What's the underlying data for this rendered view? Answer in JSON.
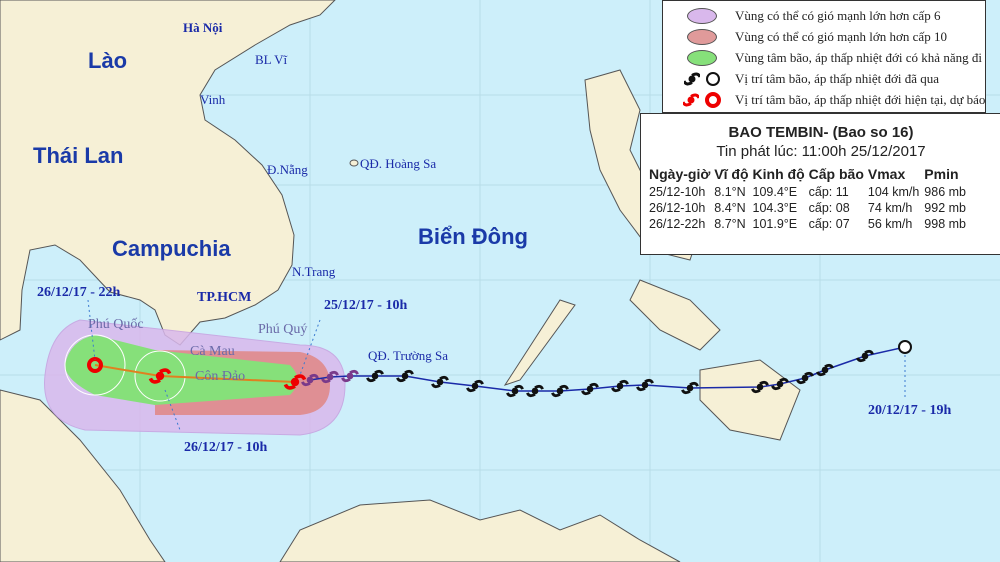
{
  "colors": {
    "sea": "#cdeffa",
    "land": "#f6f0d6",
    "wind6": "#d9b8ec",
    "wind10": "#e08a8a",
    "cone": "#86e07a",
    "track": "#1a2aa8"
  },
  "labels": {
    "countries": [
      "Lào",
      "Thái Lan",
      "Campuchia"
    ],
    "sea": "Biển Đông",
    "cities": [
      "Hà Nội",
      "BL Vĩ",
      "Vinh",
      "Đ.Nẵng",
      "QĐ. Hoàng Sa",
      "N.Trang",
      "TP.HCM",
      "Phú Quốc",
      "Phú Quý",
      "Cà Mau",
      "Côn Đảo",
      "QĐ. Trường Sa"
    ],
    "times": [
      "26/12/17 - 22h",
      "25/12/17 - 10h",
      "26/12/17 - 10h",
      "20/12/17 - 19h"
    ]
  },
  "legend": [
    {
      "icon": "ellipse-violet",
      "text": "Vùng có thể có gió mạnh lớn hơn cấp 6"
    },
    {
      "icon": "ellipse-red",
      "text": "Vùng có thể có gió mạnh lớn hơn cấp 10"
    },
    {
      "icon": "ellipse-green",
      "text": "Vùng tâm bão, áp thấp nhiệt đới có khả năng đi qua"
    },
    {
      "icon": "storm-black",
      "text": "Vị trí tâm bão, áp thấp nhiệt đới đã qua"
    },
    {
      "icon": "storm-red",
      "text": "Vị trí tâm bão, áp thấp nhiệt đới hiện tại, dự báo"
    }
  ],
  "info": {
    "title": "BAO TEMBIN- (Bao so 16)",
    "issued": "Tin phát lúc: 11:00h 25/12/2017",
    "headers": [
      "Ngày-giờ",
      "Vĩ độ",
      "Kinh độ",
      "Cấp bão",
      "Vmax",
      "Pmin"
    ],
    "rows": [
      [
        "25/12-10h",
        "8.1°N",
        "109.4°E",
        "cấp: 11",
        "104 km/h",
        "986 mb"
      ],
      [
        "26/12-10h",
        "8.4°N",
        "104.3°E",
        "cấp: 08",
        "74 km/h",
        "992 mb"
      ],
      [
        "26/12-22h",
        "8.7°N",
        "101.9°E",
        "cấp: 07",
        "56 km/h",
        "998 mb"
      ]
    ]
  }
}
